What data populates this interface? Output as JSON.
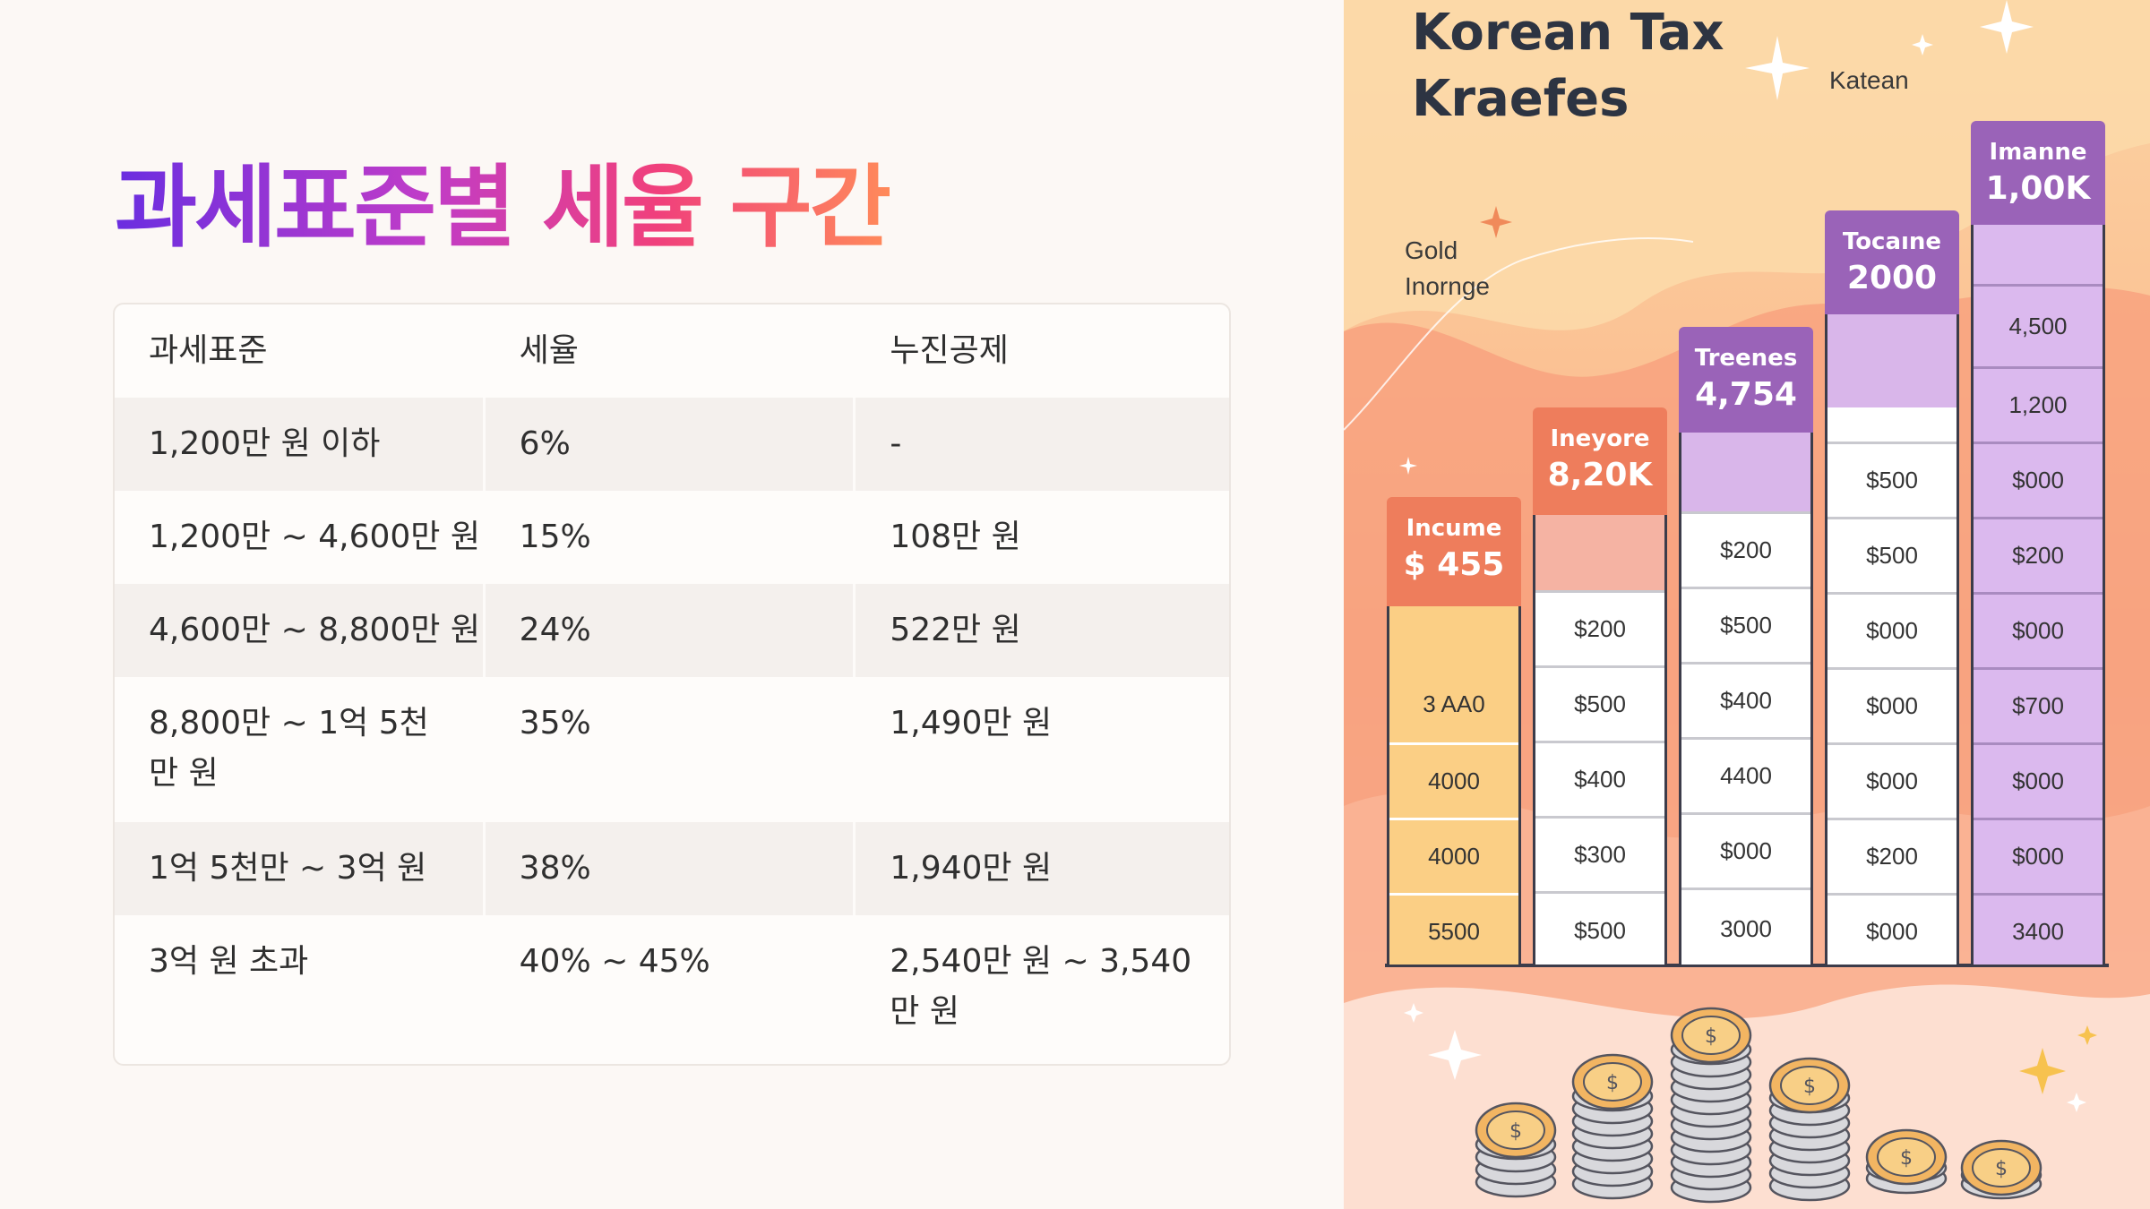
{
  "page": {
    "title": "과세표준별 세율 구간"
  },
  "table": {
    "headers": [
      "과세표준",
      "세율",
      "누진공제"
    ],
    "rows": [
      [
        "1,200만 원 이하",
        "6%",
        "-"
      ],
      [
        "1,200만 ~ 4,600만 원",
        "15%",
        "108만 원"
      ],
      [
        "4,600만 ~ 8,800만 원",
        "24%",
        "522만 원"
      ],
      [
        "8,800만 ~ 1억 5천만 원",
        "35%",
        "1,490만 원"
      ],
      [
        "1억 5천만 ~ 3억 원",
        "38%",
        "1,940만 원"
      ],
      [
        "3억 원 초과",
        "40% ~ 45%",
        "2,540만 원 ~ 3,540만 원"
      ]
    ]
  },
  "illustration": {
    "title_line1": "Korean Tax",
    "title_line2": "Kraefes",
    "label_top": "Katean",
    "label_left_line1": "Gold",
    "label_left_line2": "Inornge",
    "columns": [
      {
        "label": "Incume",
        "value": "$ 455",
        "head_color": "#ee7d5c",
        "body_color": "#fbcf85",
        "cells": [
          "",
          "3 AA0",
          "4000",
          "4000",
          "5500"
        ]
      },
      {
        "label": "Ineyore",
        "value": "8,20K",
        "head_color": "#ee7d5c",
        "body_color": "#ffffff",
        "cells": [
          "",
          "$200",
          "$500",
          "$400",
          "$300",
          "$500"
        ]
      },
      {
        "label": "Treenes",
        "value": "4,754",
        "head_color": "#9a63b8",
        "body_color": "#ffffff",
        "cells": [
          "",
          "$200",
          "$500",
          "$400",
          "4400",
          "$000",
          "3000"
        ]
      },
      {
        "label": "Tocaıne",
        "value": "2000",
        "head_color": "#9a63b8",
        "body_color": "#ffffff",
        "cells": [
          "",
          "",
          "$500",
          "$500",
          "$000",
          "$000",
          "$000",
          "$200",
          "$000"
        ]
      },
      {
        "label": "Imanne",
        "value": "1,00K",
        "head_color": "#9a63b8",
        "body_color": "#dbb9ee",
        "cells": [
          "",
          "4,500",
          "1,200",
          "$000",
          "$200",
          "$000",
          "$700",
          "$000",
          "$000",
          "3400"
        ]
      }
    ]
  }
}
